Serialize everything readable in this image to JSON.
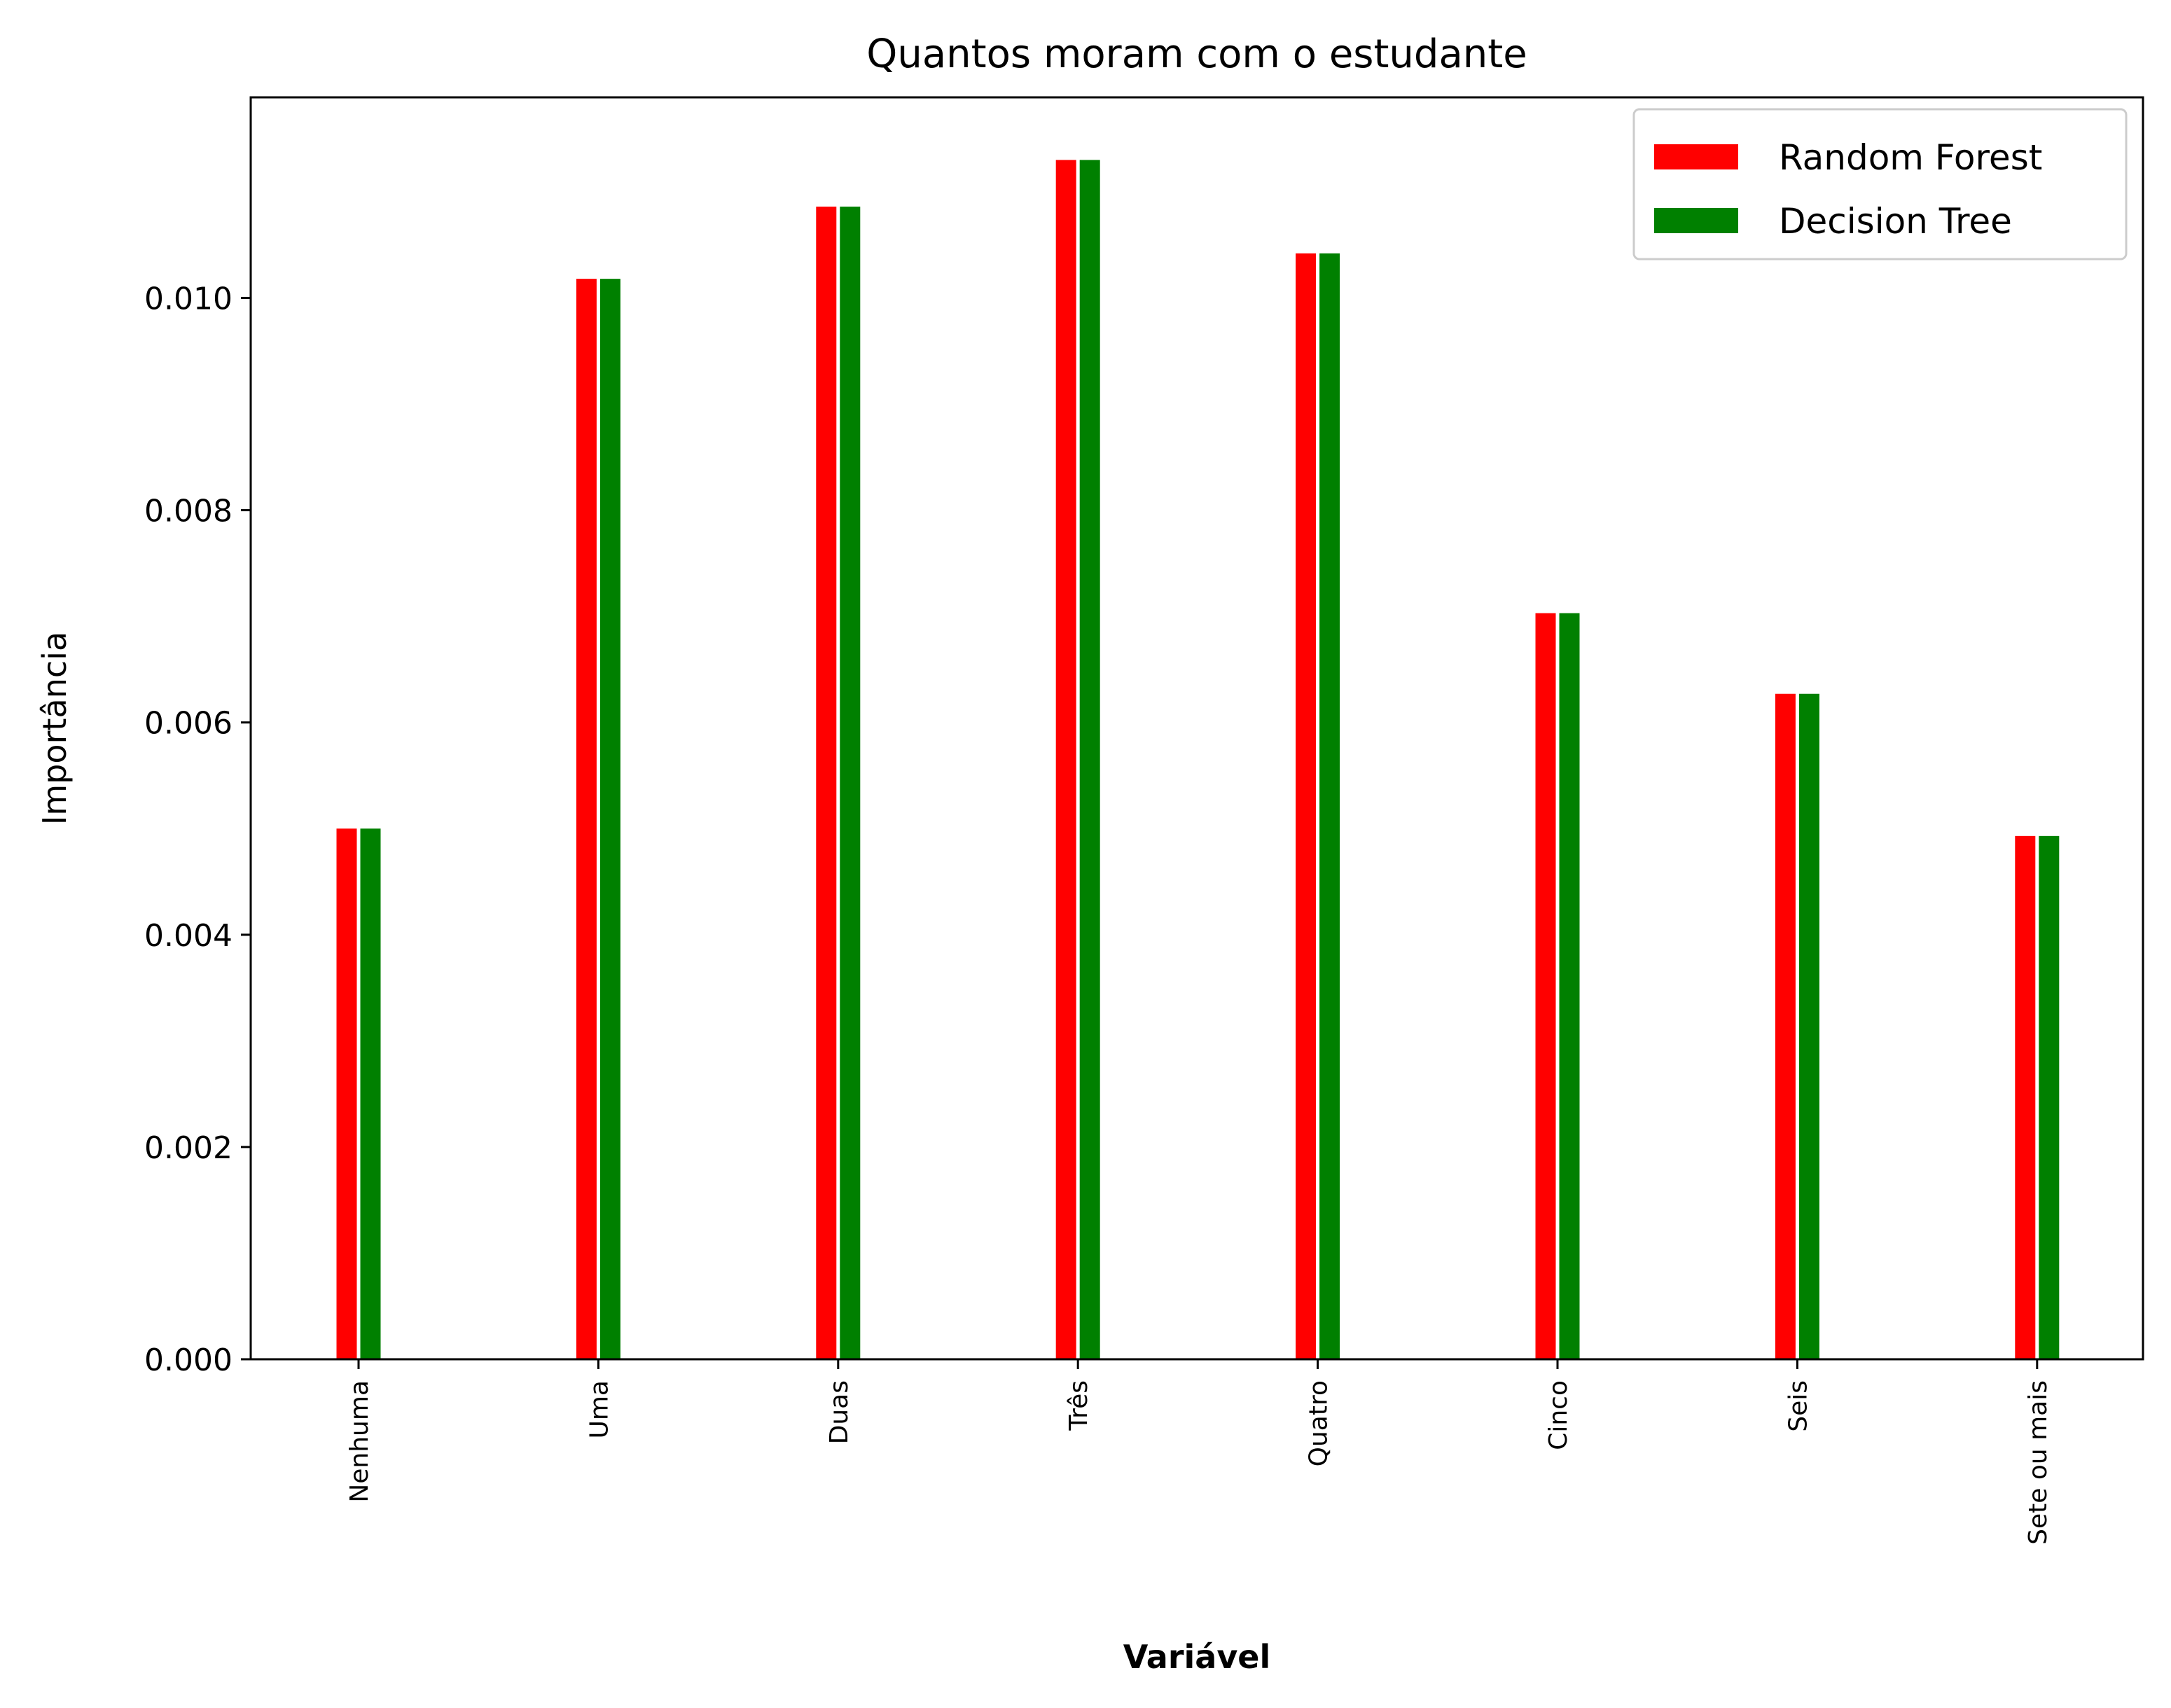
{
  "chart_data": {
    "type": "bar",
    "title": "Quantos moram com o estudante",
    "xlabel": "Variável",
    "ylabel": "Importância",
    "categories": [
      "Nenhuma",
      "Uma",
      "Duas",
      "Três",
      "Quatro",
      "Cinco",
      "Seis",
      "Sete ou mais"
    ],
    "series": [
      {
        "name": "Random Forest",
        "color": "#ff0000",
        "values": [
          0.005,
          0.01018,
          0.01086,
          0.0113,
          0.01042,
          0.00703,
          0.00627,
          0.00493
        ]
      },
      {
        "name": "Decision Tree",
        "color": "#008000",
        "values": [
          0.005,
          0.01018,
          0.01086,
          0.0113,
          0.01042,
          0.00703,
          0.00627,
          0.00493
        ]
      }
    ],
    "ylim": [
      0,
      0.01189
    ],
    "yticks": [
      "0.000",
      "0.002",
      "0.004",
      "0.006",
      "0.008",
      "0.010"
    ],
    "ytick_values": [
      0,
      0.002,
      0.004,
      0.006,
      0.008,
      0.01
    ],
    "grid": false,
    "legend_position": "top-right"
  }
}
